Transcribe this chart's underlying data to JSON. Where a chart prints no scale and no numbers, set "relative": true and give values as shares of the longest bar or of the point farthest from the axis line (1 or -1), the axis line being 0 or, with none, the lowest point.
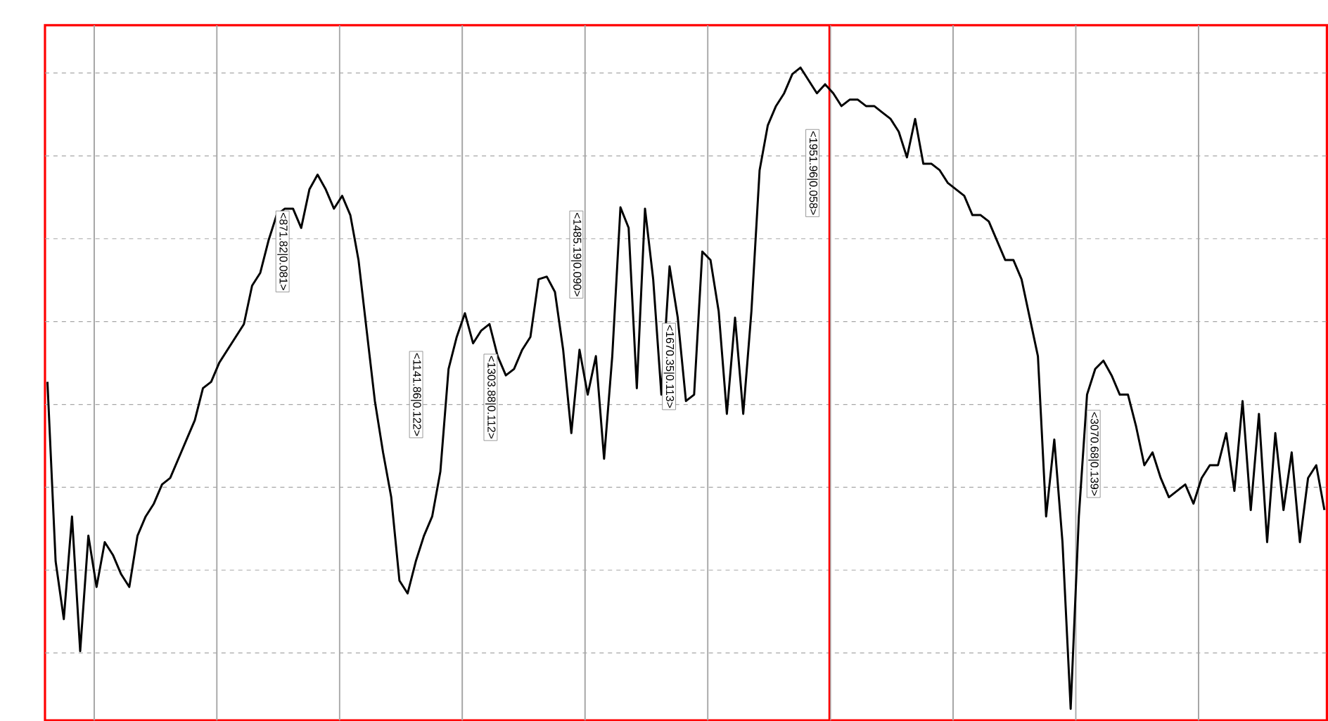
{
  "chart_data": {
    "type": "line",
    "relative": true,
    "grid": true,
    "marker": "none",
    "line_style": "solid",
    "categories": [
      null,
      null,
      null,
      null,
      null,
      null,
      null,
      null,
      null,
      null,
      null,
      null,
      null,
      null,
      null,
      null,
      null,
      null,
      null,
      null,
      null,
      null,
      null,
      null,
      null,
      null,
      null,
      null,
      null,
      null,
      null,
      null,
      null,
      null,
      null,
      null,
      null,
      null,
      null,
      null,
      null,
      null,
      null,
      null,
      null,
      null,
      null,
      null,
      null,
      null,
      null,
      null,
      null,
      null,
      null,
      null,
      null,
      null,
      null,
      null,
      null,
      null,
      null,
      null,
      null,
      null,
      null,
      null,
      null,
      null,
      null,
      null,
      null,
      null,
      null,
      null,
      null,
      null,
      null,
      null,
      null,
      null,
      null,
      null,
      null,
      null,
      null,
      null,
      null,
      null,
      null,
      null,
      null,
      null,
      null,
      null,
      null,
      null,
      null,
      null,
      null,
      null,
      null,
      null,
      null,
      null,
      null,
      null,
      null,
      null,
      null,
      null,
      null,
      null,
      null,
      null,
      null,
      null,
      null,
      null,
      null,
      null,
      null,
      null,
      null,
      null,
      null,
      null,
      null,
      null,
      null,
      null,
      null,
      null,
      null,
      null,
      null,
      null,
      null,
      null,
      null,
      null,
      null,
      null,
      null,
      null,
      null,
      null,
      null,
      null,
      null,
      null,
      null,
      null,
      null,
      null,
      null
    ],
    "series": [
      {
        "color": "#000000",
        "values": [
          0.51,
          0.23,
          0.14,
          0.3,
          0.09,
          0.27,
          0.19,
          0.26,
          0.24,
          0.21,
          0.19,
          0.27,
          0.3,
          0.32,
          0.35,
          0.36,
          0.39,
          0.42,
          0.45,
          0.5,
          0.51,
          0.54,
          0.56,
          0.58,
          0.6,
          0.66,
          0.68,
          0.73,
          0.77,
          0.78,
          0.78,
          0.75,
          0.81,
          0.833,
          0.81,
          0.78,
          0.8,
          0.77,
          0.7,
          0.59,
          0.48,
          0.4,
          0.33,
          0.2,
          0.18,
          0.23,
          0.27,
          0.3,
          0.37,
          0.53,
          0.58,
          0.617,
          0.57,
          0.59,
          0.6,
          0.55,
          0.52,
          0.53,
          0.56,
          0.58,
          0.67,
          0.674,
          0.65,
          0.56,
          0.43,
          0.56,
          0.49,
          0.55,
          0.39,
          0.55,
          0.782,
          0.75,
          0.5,
          0.78,
          0.67,
          0.49,
          0.69,
          0.61,
          0.48,
          0.49,
          0.713,
          0.7,
          0.62,
          0.46,
          0.61,
          0.46,
          0.62,
          0.84,
          0.91,
          0.94,
          0.96,
          0.99,
          1,
          0.98,
          0.96,
          0.974,
          0.96,
          0.94,
          0.95,
          0.95,
          0.94,
          0.94,
          0.93,
          0.92,
          0.9,
          0.86,
          0.92,
          0.85,
          0.85,
          0.84,
          0.82,
          0.81,
          0.8,
          0.77,
          0.77,
          0.76,
          0.73,
          0.7,
          0.7,
          0.67,
          0.61,
          0.55,
          0.3,
          0.42,
          0.26,
          0,
          0.3,
          0.49,
          0.53,
          0.543,
          0.52,
          0.49,
          0.49,
          0.44,
          0.38,
          0.4,
          0.36,
          0.33,
          0.34,
          0.35,
          0.32,
          0.36,
          0.38,
          0.38,
          0.43,
          0.34,
          0.48,
          0.31,
          0.46,
          0.26,
          0.43,
          0.31,
          0.4,
          0.26,
          0.36,
          0.38,
          0.31
        ]
      }
    ],
    "annotations": [
      "<871.82|0.081>",
      "<1141.86|0.122>",
      "<1303.88|0.112>",
      "<1485.19|0.090>",
      "<1670.35|0.113>",
      "<1951.96|0.058>",
      "<3070.68|0.139>"
    ]
  }
}
